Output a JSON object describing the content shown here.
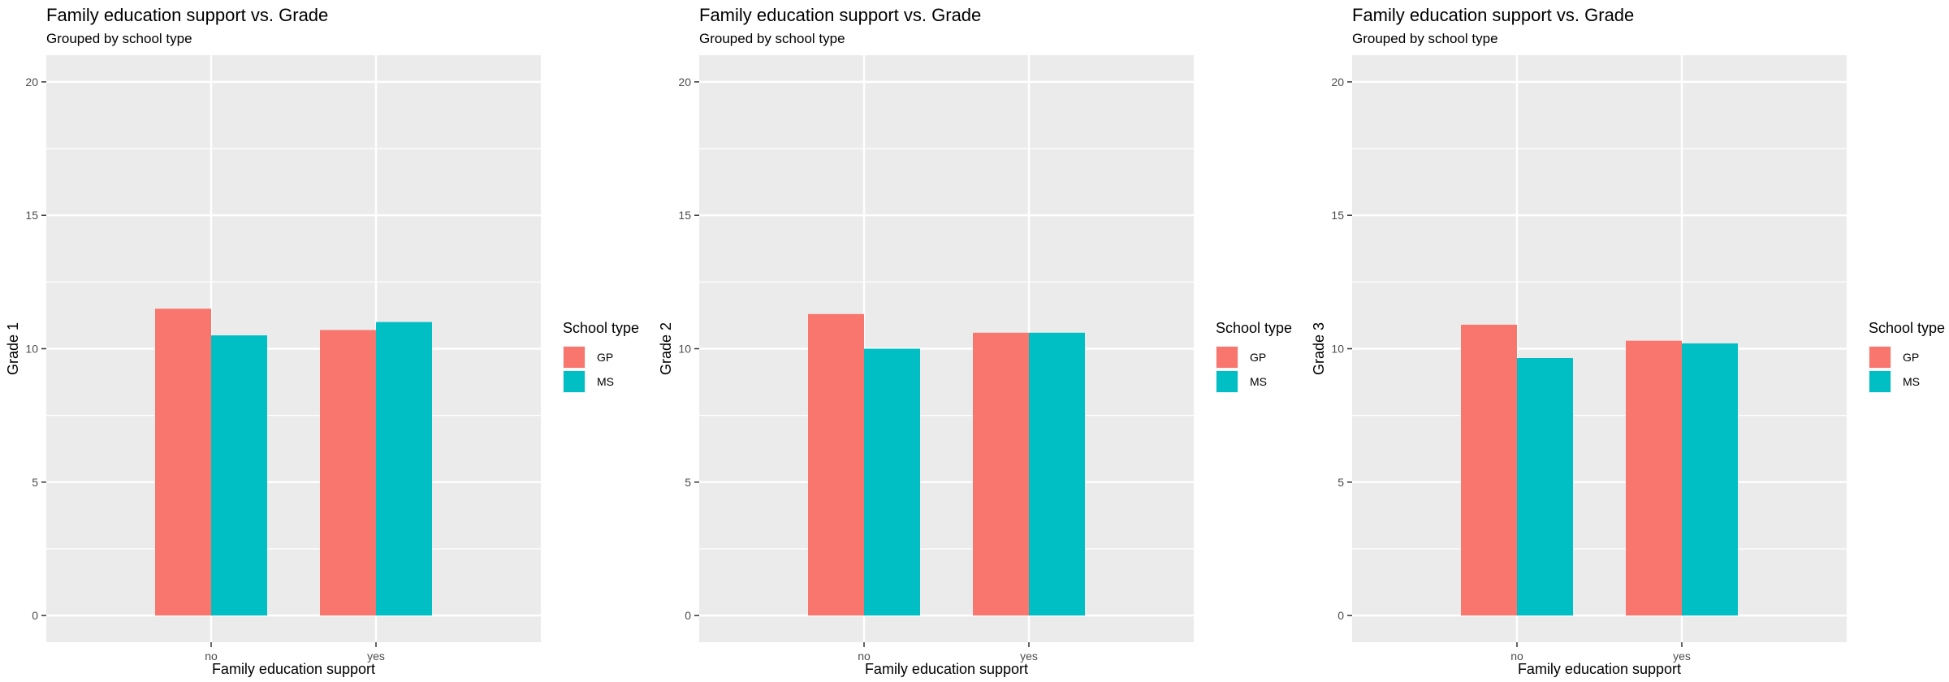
{
  "colors": {
    "GP": "#F8766D",
    "MS": "#00BFC4",
    "panel_bg": "#EBEBEB",
    "grid": "#FFFFFF"
  },
  "chart_data": [
    {
      "type": "bar",
      "title": "Family education support vs. Grade",
      "subtitle": "Grouped by school type",
      "xlabel": "Family education support",
      "ylabel": "Grade 1",
      "categories": [
        "no",
        "yes"
      ],
      "series": [
        {
          "name": "GP",
          "values": [
            11.5,
            10.7
          ]
        },
        {
          "name": "MS",
          "values": [
            10.5,
            11.0
          ]
        }
      ],
      "ylim": [
        -1,
        21
      ],
      "yticks": [
        0,
        5,
        10,
        15,
        20
      ],
      "legend_title": "School type",
      "legend_position": "right",
      "grid": true
    },
    {
      "type": "bar",
      "title": "Family education support vs. Grade",
      "subtitle": "Grouped by school type",
      "xlabel": "Family education support",
      "ylabel": "Grade 2",
      "categories": [
        "no",
        "yes"
      ],
      "series": [
        {
          "name": "GP",
          "values": [
            11.3,
            10.6
          ]
        },
        {
          "name": "MS",
          "values": [
            10.0,
            10.6
          ]
        }
      ],
      "ylim": [
        -1,
        21
      ],
      "yticks": [
        0,
        5,
        10,
        15,
        20
      ],
      "legend_title": "School type",
      "legend_position": "right",
      "grid": true
    },
    {
      "type": "bar",
      "title": "Family education support vs. Grade",
      "subtitle": "Grouped by school type",
      "xlabel": "Family education support",
      "ylabel": "Grade 3",
      "categories": [
        "no",
        "yes"
      ],
      "series": [
        {
          "name": "GP",
          "values": [
            10.9,
            10.3
          ]
        },
        {
          "name": "MS",
          "values": [
            9.65,
            10.2
          ]
        }
      ],
      "ylim": [
        -1,
        21
      ],
      "yticks": [
        0,
        5,
        10,
        15,
        20
      ],
      "legend_title": "School type",
      "legend_position": "right",
      "grid": true
    }
  ]
}
